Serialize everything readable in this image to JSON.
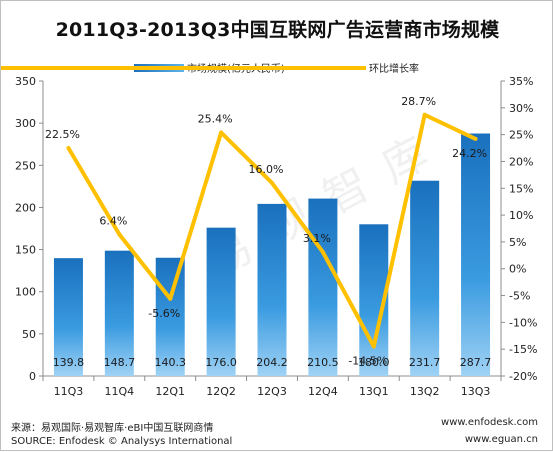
{
  "chart_data": {
    "type": "bar+line",
    "title": "2011Q3-2013Q3中国互联网广告运营商市场规模",
    "categories": [
      "11Q3",
      "11Q4",
      "12Q1",
      "12Q2",
      "12Q3",
      "12Q4",
      "13Q1",
      "13Q2",
      "13Q3"
    ],
    "series": [
      {
        "name": "市场规模(亿元人民币)",
        "type": "bar",
        "axis": "left",
        "values": [
          139.8,
          148.7,
          140.3,
          176.0,
          204.2,
          210.5,
          180.0,
          231.7,
          287.7
        ],
        "labels": [
          "139.8",
          "148.7",
          "140.3",
          "176.0",
          "204.2",
          "210.5",
          "180.0",
          "231.7",
          "287.7"
        ],
        "color": "#2a86cc"
      },
      {
        "name": "环比增长率",
        "type": "line",
        "axis": "right",
        "values": [
          22.5,
          6.4,
          -5.6,
          25.4,
          16.0,
          3.1,
          -14.5,
          28.7,
          24.2
        ],
        "labels": [
          "22.5%",
          "6.4%",
          "-5.6%",
          "25.4%",
          "16.0%",
          "3.1%",
          "-14.5%",
          "28.7%",
          "24.2%"
        ],
        "color": "#ffc000"
      }
    ],
    "y_left": {
      "min": 0,
      "max": 350,
      "ticks": [
        "0",
        "50",
        "100",
        "150",
        "200",
        "250",
        "300",
        "350"
      ]
    },
    "y_right": {
      "min": -20,
      "max": 35,
      "ticks": [
        "-20%",
        "-15%",
        "-10%",
        "-5%",
        "0%",
        "5%",
        "10%",
        "15%",
        "20%",
        "25%",
        "30%",
        "35%"
      ]
    },
    "legend_position": "top-center",
    "grid": false
  },
  "watermark": "易观智库",
  "footer": {
    "source_cn": "来源：易观国际·易观智库·eBI中国互联网商情",
    "source_en": "SOURCE: Enfodesk © Analysys International",
    "url1": "www.enfodesk.com",
    "url2": "www.eguan.cn"
  }
}
